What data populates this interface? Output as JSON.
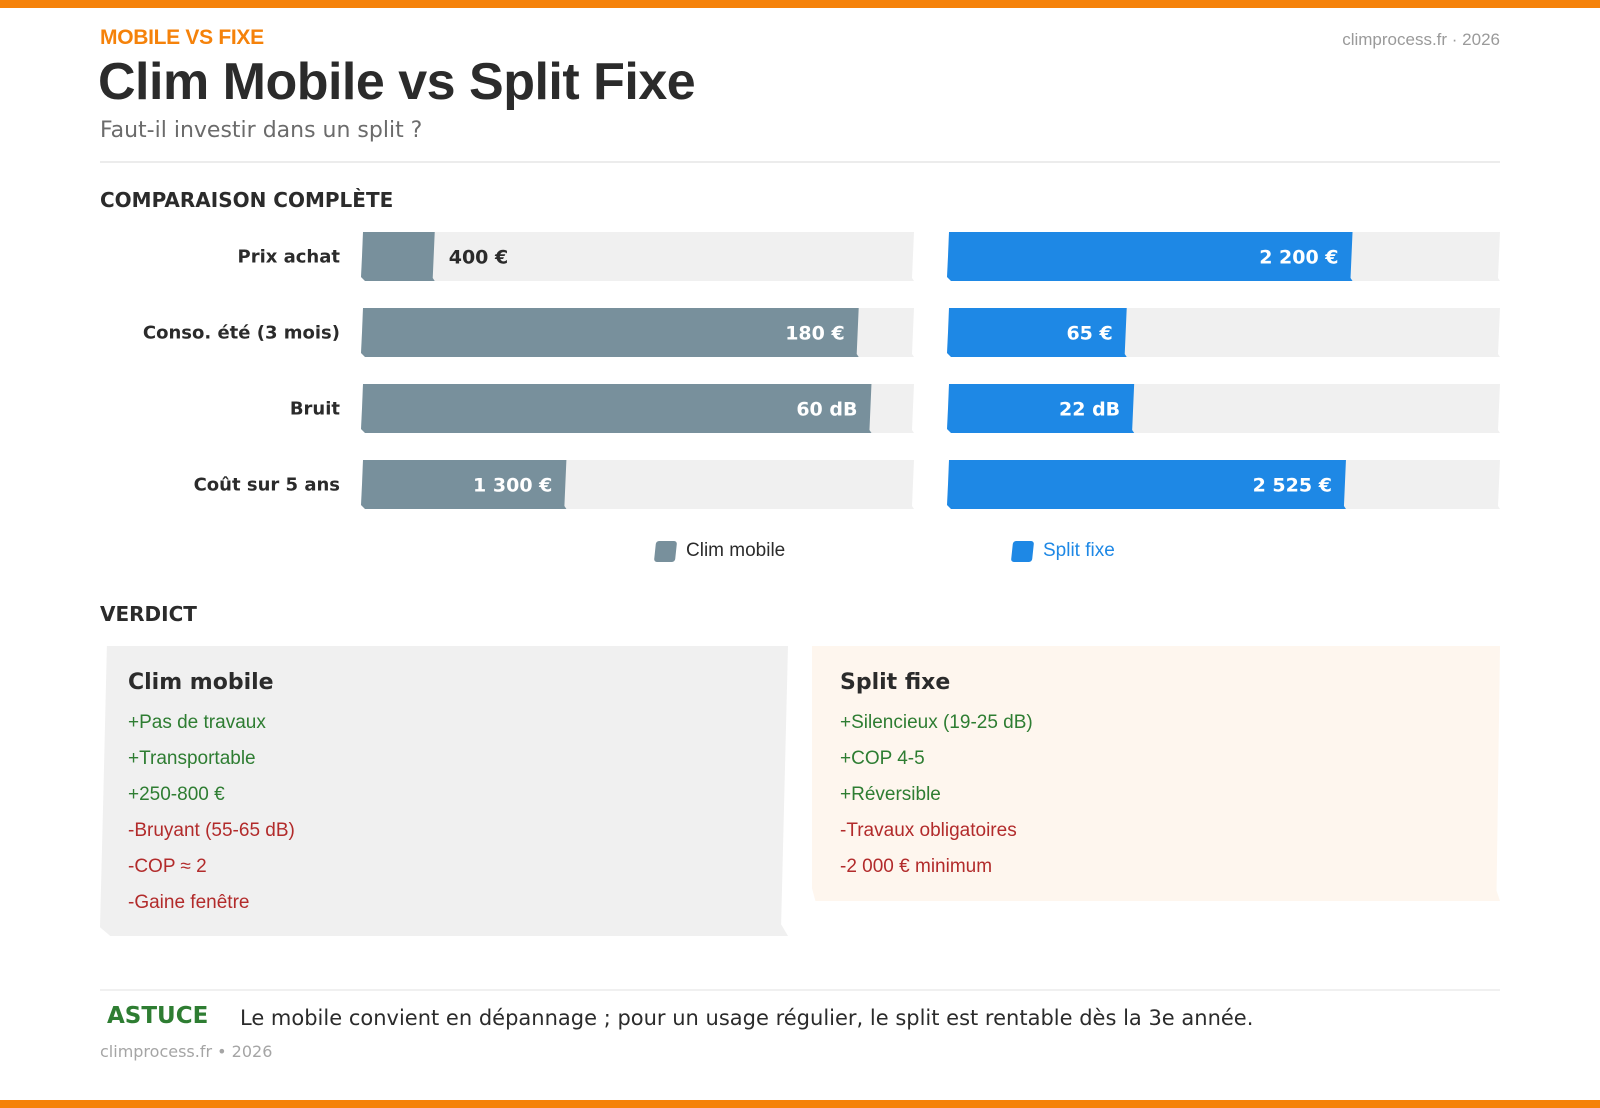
{
  "header": {
    "eyebrow": "MOBILE VS FIXE",
    "brand": "climprocess.fr · 2026",
    "title": "Clim Mobile vs Split Fixe",
    "subtitle": "Faut-il investir dans un split ?"
  },
  "sections": {
    "comparison_title": "COMPARAISON COMPLÈTE",
    "verdict_title": "VERDICT"
  },
  "colors": {
    "accent": "#f5820a",
    "mobile": "#78909c",
    "split": "#1e88e5",
    "track": "#f0f0f0",
    "pro": "#2e7d32",
    "con": "#b22b2b"
  },
  "chart_data": {
    "type": "bar",
    "orientation": "horizontal",
    "layout": "paired panels, each row scaled to its own maximum",
    "categories": [
      "Prix achat",
      "Conso. été (3 mois)",
      "Bruit",
      "Coût sur 5 ans"
    ],
    "series": [
      {
        "name": "Clim mobile",
        "color": "#78909c",
        "values": [
          400,
          180,
          60,
          1300
        ],
        "labels": [
          "400 €",
          "180 €",
          "60 dB",
          "1 300 €"
        ]
      },
      {
        "name": "Split fixe",
        "color": "#1e88e5",
        "values": [
          2200,
          65,
          22,
          2525
        ],
        "labels": [
          "2 200 €",
          "65 €",
          "22 dB",
          "2 525 €"
        ]
      }
    ],
    "row_max": [
      3000,
      200,
      65,
      3500
    ],
    "legend_position": "bottom-center",
    "grid": false
  },
  "verdict": {
    "mobile": {
      "title": "Clim mobile",
      "pros": [
        "+Pas de travaux",
        "+Transportable",
        "+250-800 €"
      ],
      "cons": [
        "-Bruyant (55-65 dB)",
        "-COP ≈ 2",
        "-Gaine fenêtre"
      ]
    },
    "split": {
      "title": "Split fixe",
      "pros": [
        "+Silencieux (19-25 dB)",
        "+COP 4-5",
        "+Réversible"
      ],
      "cons": [
        "-Travaux obligatoires",
        "-2 000 € minimum"
      ]
    }
  },
  "tip": {
    "label": "ASTUCE",
    "text": "Le mobile convient en dépannage ; pour un usage régulier, le split est rentable dès la 3e année."
  },
  "footer": {
    "brand": "climprocess.fr • 2026"
  }
}
